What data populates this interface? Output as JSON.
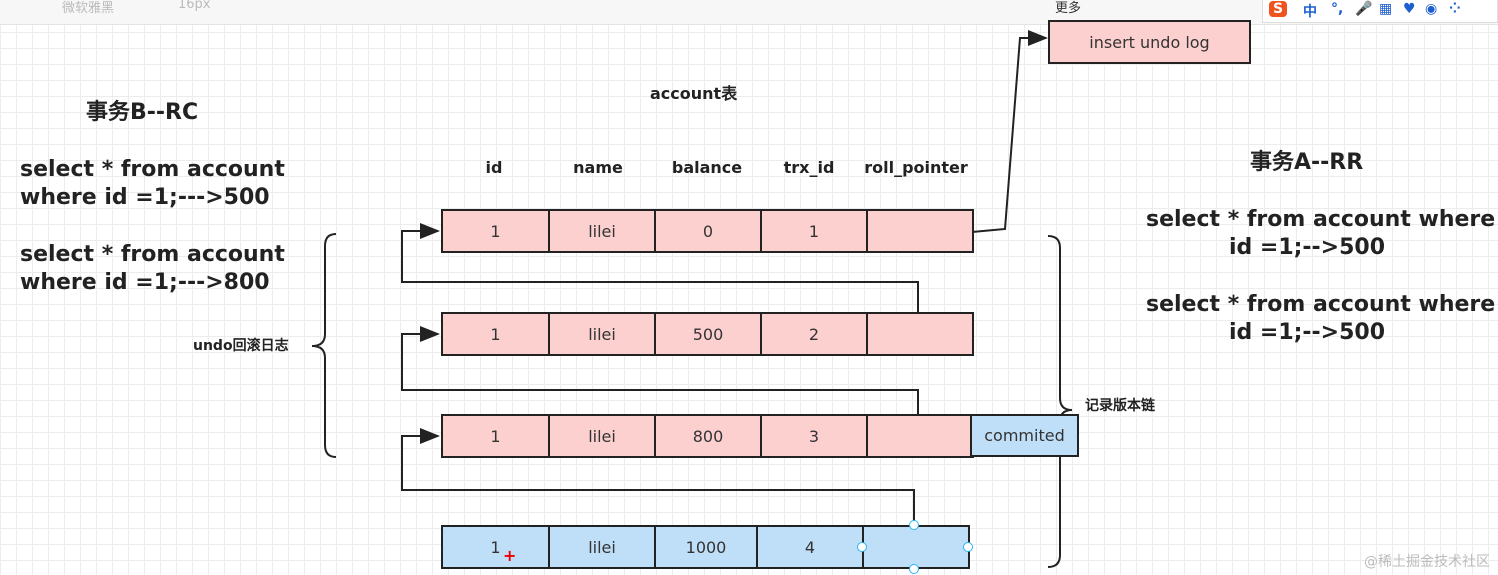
{
  "toolbar": {
    "font": "微软雅黑",
    "size": "16px",
    "more": "更多"
  },
  "ime": {
    "mode": "中",
    "punct": "°,"
  },
  "diagram": {
    "table_title": "account表",
    "columns": [
      "id",
      "name",
      "balance",
      "trx_id",
      "roll_pointer"
    ],
    "rows": [
      {
        "cells": [
          "1",
          "lilei",
          "0",
          "1",
          ""
        ],
        "color": "#fdd0d0"
      },
      {
        "cells": [
          "1",
          "lilei",
          "500",
          "2",
          ""
        ],
        "color": "#fdd0d0"
      },
      {
        "cells": [
          "1",
          "lilei",
          "800",
          "3",
          ""
        ],
        "color": "#fdd0d0",
        "tag": "commited"
      },
      {
        "cells": [
          "1",
          "lilei",
          "1000",
          "4",
          ""
        ],
        "color": "#bfdff8"
      }
    ],
    "insert_undo": "insert undo log",
    "undo_label": "undo回滚日志",
    "chain_label": "记录版本链",
    "txB": {
      "title": "事务B--RC",
      "q1a": "select * from account",
      "q1b": "where id =1;--->500",
      "q2a": "select * from account",
      "q2b": "where id =1;--->800"
    },
    "txA": {
      "title": "事务A--RR",
      "q1a": "select * from account where",
      "q1b": "id =1;-->500",
      "q2a": "select * from account where",
      "q2b": "id =1;-->500"
    }
  },
  "watermark": "@稀土掘金技术社区"
}
